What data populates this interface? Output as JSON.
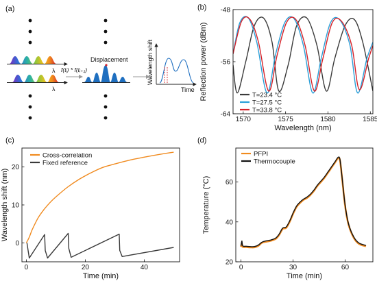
{
  "panel_labels": [
    "(a)",
    "(b)",
    "(c)",
    "(d)"
  ],
  "schematic": {
    "lambda_symbol": "λ",
    "formula": "f(tᵢ) * f(tᵢ₊₁)",
    "displacement_label": "Displacement",
    "shift_ylabel": "Wavelength shift",
    "time_label": "Time"
  },
  "chart_data": [
    {
      "id": "b",
      "type": "line",
      "xlabel": "Wavelength (nm)",
      "ylabel": "Reflection power (dBm)",
      "xlim": [
        1568.8,
        1585.3
      ],
      "ylim": [
        -64,
        -48
      ],
      "xticks": [
        1570,
        1575,
        1580,
        1585
      ],
      "yticks": [
        -64,
        -56,
        -48
      ],
      "legend_position": "bottom-left",
      "series": [
        {
          "name": "T=23.4 °C",
          "color": "#3a3a3a",
          "x": [
            1568.8,
            1569.3,
            1570.3,
            1571.3,
            1572.4,
            1573.4,
            1574.2,
            1575.3,
            1576.3,
            1577.5,
            1578.7,
            1579.8,
            1580.8,
            1582.0,
            1583.1,
            1584.1,
            1585.3
          ],
          "y": [
            -56.5,
            -60.8,
            -56.0,
            -50.5,
            -49.3,
            -53.0,
            -60.5,
            -56.5,
            -50.5,
            -49.3,
            -53.5,
            -60.5,
            -55.5,
            -50.5,
            -49.5,
            -53.0,
            -60.5
          ]
        },
        {
          "name": "T=27.5 °C",
          "color": "#2a9fd8",
          "x": [
            1568.8,
            1569.6,
            1570.6,
            1571.6,
            1572.8,
            1573.8,
            1574.9,
            1576.0,
            1577.1,
            1578.2,
            1579.2,
            1580.3,
            1581.4,
            1582.6,
            1583.5,
            1584.6,
            1585.3
          ],
          "y": [
            -54.8,
            -50.0,
            -49.3,
            -53.0,
            -60.8,
            -55.0,
            -50.0,
            -49.4,
            -53.5,
            -60.8,
            -55.5,
            -50.0,
            -49.6,
            -53.5,
            -60.8,
            -55.5,
            -53.0
          ]
        },
        {
          "name": "T=33.8 °C",
          "color": "#d62128",
          "x": [
            1568.8,
            1569.8,
            1570.8,
            1571.8,
            1573.0,
            1574.0,
            1575.1,
            1576.2,
            1577.3,
            1578.4,
            1579.4,
            1580.5,
            1581.6,
            1582.8,
            1583.7,
            1584.8,
            1585.3
          ],
          "y": [
            -54.8,
            -49.8,
            -49.5,
            -53.0,
            -60.5,
            -55.0,
            -50.0,
            -49.5,
            -53.5,
            -60.5,
            -55.5,
            -50.0,
            -49.8,
            -53.5,
            -60.3,
            -55.5,
            -53.5
          ]
        }
      ]
    },
    {
      "id": "c",
      "type": "line",
      "xlabel": "Time (min)",
      "ylabel": "Wavelength shift (nm)",
      "xlim": [
        -1.5,
        52
      ],
      "ylim": [
        -5,
        25
      ],
      "xticks": [
        0,
        20,
        40
      ],
      "yticks": [
        0,
        10,
        20
      ],
      "legend_position": "top-left",
      "series": [
        {
          "name": "Cross-correlation",
          "color": "#f08a1e",
          "x": [
            0,
            1,
            2,
            4,
            6,
            8,
            10,
            14,
            18,
            22,
            26,
            30,
            35,
            40,
            45,
            50
          ],
          "y": [
            0,
            1.5,
            3.5,
            6.6,
            8.8,
            10.6,
            12.1,
            14.7,
            16.8,
            18.5,
            19.9,
            20.8,
            21.8,
            22.6,
            23.3,
            23.9
          ]
        },
        {
          "name": "Fixed reference",
          "color": "#3a3a3a",
          "x": [
            0.2,
            1.0,
            6.2,
            6.4,
            7.2,
            14.2,
            14.4,
            15.2,
            31.5,
            31.7,
            32.5,
            50
          ],
          "y": [
            0,
            -4.0,
            2.2,
            -2.0,
            -4.0,
            2.5,
            -1.5,
            -3.8,
            2.3,
            -2.0,
            -3.6,
            -1.2
          ]
        }
      ]
    },
    {
      "id": "d",
      "type": "line",
      "xlabel": "Time (min)",
      "ylabel": "Temperature (°C)",
      "xlim": [
        -3,
        76
      ],
      "ylim": [
        20,
        77
      ],
      "xticks": [
        0,
        30,
        60
      ],
      "yticks": [
        20,
        40,
        60
      ],
      "legend_position": "top-left",
      "series": [
        {
          "name": "PFPI",
          "color": "#f08a1e",
          "x": [
            0,
            0.5,
            1,
            3,
            6,
            8,
            10,
            12,
            14,
            17,
            20,
            22,
            24,
            26,
            28,
            30,
            32,
            34,
            36,
            38,
            40,
            42,
            44,
            46,
            48,
            50,
            52,
            54,
            56,
            57,
            58,
            60,
            62,
            65,
            68,
            72
          ],
          "y": [
            27.5,
            29.0,
            27.5,
            27.4,
            27.2,
            27.3,
            28.0,
            29.5,
            30.0,
            30.5,
            31.5,
            33.5,
            36.5,
            37.0,
            40.0,
            44.0,
            47.5,
            49.5,
            51.0,
            52.0,
            53.5,
            55.5,
            58.0,
            60.0,
            62.0,
            64.5,
            67.0,
            69.5,
            72.0,
            71.0,
            64.0,
            48.0,
            38.5,
            32.0,
            29.0,
            27.8
          ]
        },
        {
          "name": "Thermocouple",
          "color": "#111111",
          "x": [
            0,
            0.5,
            1,
            3,
            6,
            8,
            10,
            12,
            14,
            17,
            20,
            22,
            24,
            26,
            28,
            30,
            32,
            34,
            36,
            38,
            40,
            42,
            44,
            46,
            48,
            50,
            52,
            54,
            56,
            57,
            58,
            60,
            62,
            65,
            68,
            72
          ],
          "y": [
            28.0,
            30.5,
            28.0,
            27.8,
            27.6,
            27.7,
            28.4,
            29.8,
            30.4,
            30.9,
            31.9,
            33.9,
            36.9,
            37.4,
            40.4,
            44.4,
            47.9,
            49.9,
            51.4,
            52.4,
            53.9,
            55.9,
            58.4,
            60.4,
            62.4,
            64.9,
            67.4,
            69.9,
            72.4,
            71.4,
            64.4,
            48.4,
            38.9,
            32.4,
            29.4,
            28.2
          ]
        }
      ]
    }
  ]
}
